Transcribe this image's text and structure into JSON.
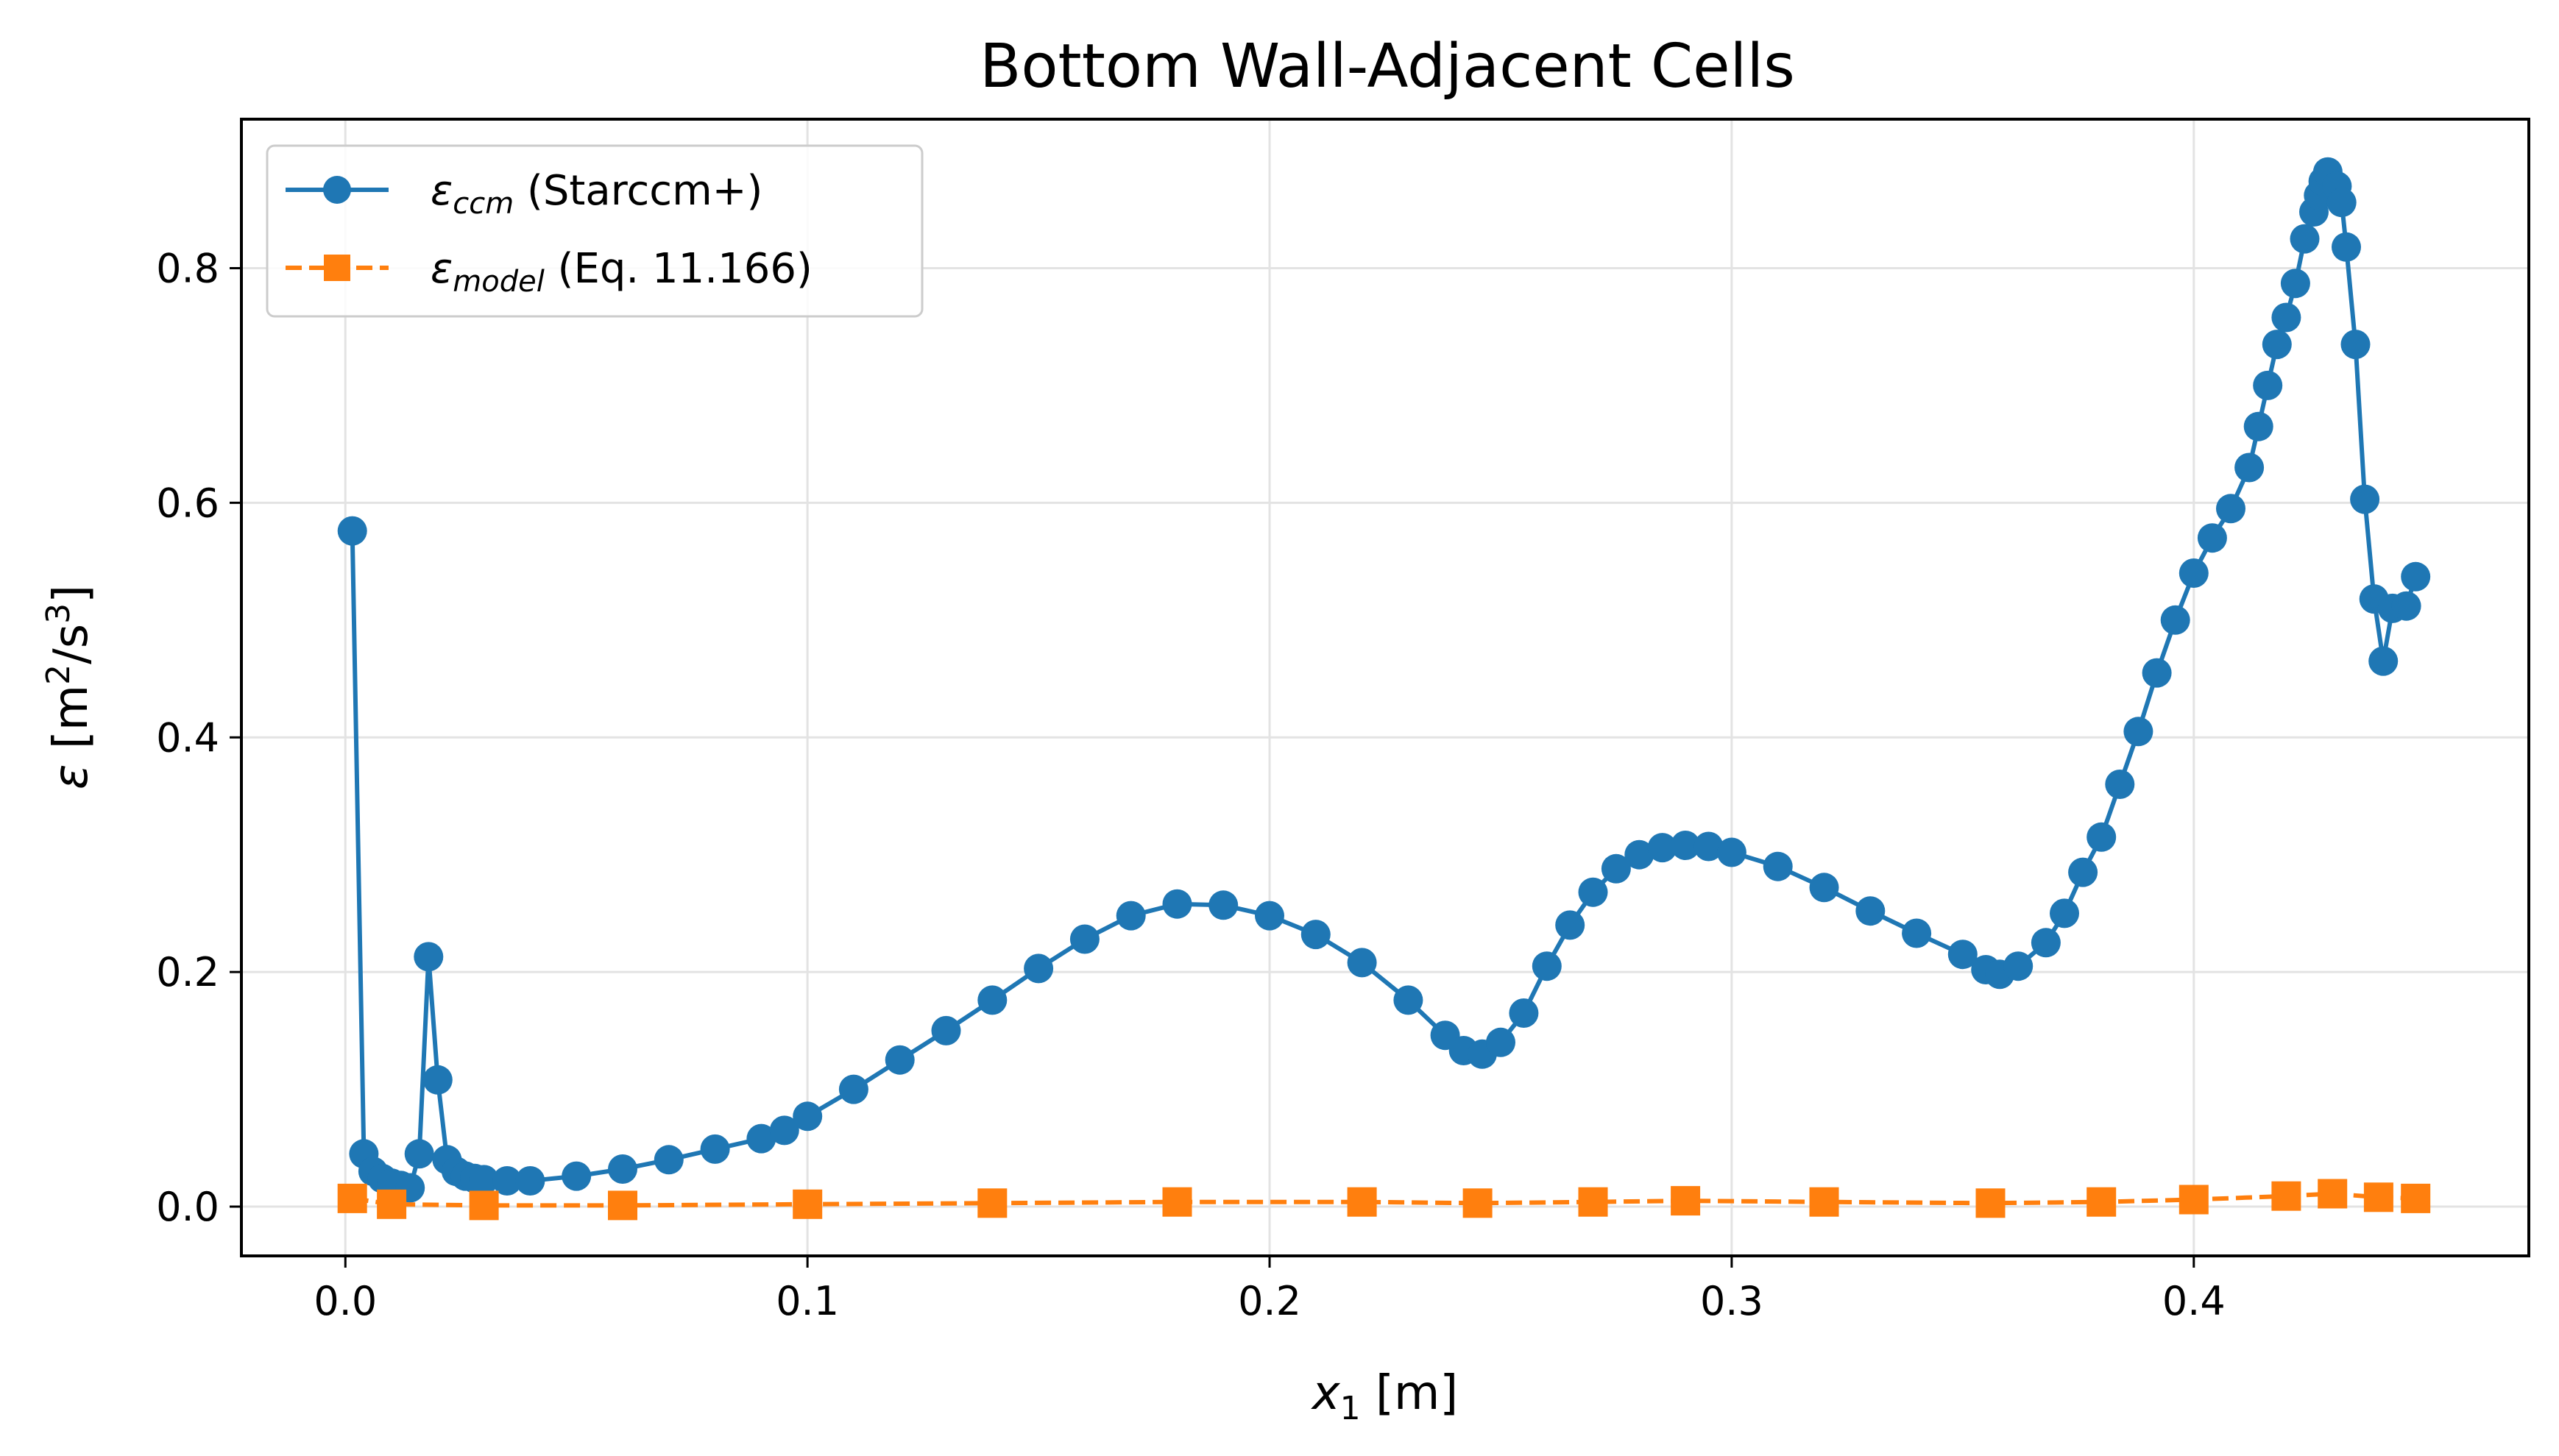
{
  "chart_data": {
    "type": "line",
    "title": "Bottom Wall-Adjacent Cells",
    "xlabel": {
      "var": "x",
      "sub": "1",
      "unit": " [m]"
    },
    "ylabel": {
      "var": "ε",
      "unit_a": " [m",
      "sup_a": "2",
      "unit_b": "/s",
      "sup_b": "3",
      "unit_c": "]"
    },
    "xlim": [
      -0.0225,
      0.4725
    ],
    "ylim": [
      -0.042,
      0.927
    ],
    "xticks": [
      0.0,
      0.1,
      0.2,
      0.3,
      0.4
    ],
    "xtick_labels": [
      "0.0",
      "0.1",
      "0.2",
      "0.3",
      "0.4"
    ],
    "yticks": [
      0.0,
      0.2,
      0.4,
      0.6,
      0.8
    ],
    "ytick_labels": [
      "0.0",
      "0.2",
      "0.4",
      "0.6",
      "0.8"
    ],
    "grid": true,
    "legend_position": "upper-left",
    "series": [
      {
        "name_var": "ε",
        "name_sub": "ccm",
        "name_rest": " (Starccm+)",
        "color": "#1f77b4",
        "linestyle": "solid",
        "marker": "circle",
        "points": [
          [
            0.0015,
            0.576
          ],
          [
            0.004,
            0.045
          ],
          [
            0.006,
            0.03
          ],
          [
            0.008,
            0.024
          ],
          [
            0.01,
            0.02
          ],
          [
            0.012,
            0.018
          ],
          [
            0.014,
            0.016
          ],
          [
            0.016,
            0.045
          ],
          [
            0.018,
            0.213
          ],
          [
            0.02,
            0.108
          ],
          [
            0.022,
            0.04
          ],
          [
            0.024,
            0.03
          ],
          [
            0.026,
            0.026
          ],
          [
            0.028,
            0.024
          ],
          [
            0.03,
            0.023
          ],
          [
            0.035,
            0.022
          ],
          [
            0.04,
            0.022
          ],
          [
            0.05,
            0.026
          ],
          [
            0.06,
            0.032
          ],
          [
            0.07,
            0.04
          ],
          [
            0.08,
            0.049
          ],
          [
            0.09,
            0.058
          ],
          [
            0.095,
            0.065
          ],
          [
            0.1,
            0.077
          ],
          [
            0.11,
            0.1
          ],
          [
            0.12,
            0.125
          ],
          [
            0.13,
            0.15
          ],
          [
            0.14,
            0.176
          ],
          [
            0.15,
            0.203
          ],
          [
            0.16,
            0.228
          ],
          [
            0.17,
            0.248
          ],
          [
            0.18,
            0.258
          ],
          [
            0.19,
            0.257
          ],
          [
            0.2,
            0.248
          ],
          [
            0.21,
            0.232
          ],
          [
            0.22,
            0.208
          ],
          [
            0.23,
            0.176
          ],
          [
            0.238,
            0.146
          ],
          [
            0.242,
            0.133
          ],
          [
            0.246,
            0.13
          ],
          [
            0.25,
            0.14
          ],
          [
            0.255,
            0.165
          ],
          [
            0.26,
            0.205
          ],
          [
            0.265,
            0.24
          ],
          [
            0.27,
            0.268
          ],
          [
            0.275,
            0.288
          ],
          [
            0.28,
            0.3
          ],
          [
            0.285,
            0.306
          ],
          [
            0.29,
            0.308
          ],
          [
            0.295,
            0.307
          ],
          [
            0.3,
            0.302
          ],
          [
            0.31,
            0.29
          ],
          [
            0.32,
            0.272
          ],
          [
            0.33,
            0.252
          ],
          [
            0.34,
            0.233
          ],
          [
            0.35,
            0.215
          ],
          [
            0.355,
            0.202
          ],
          [
            0.358,
            0.198
          ],
          [
            0.362,
            0.205
          ],
          [
            0.368,
            0.225
          ],
          [
            0.372,
            0.25
          ],
          [
            0.376,
            0.285
          ],
          [
            0.38,
            0.315
          ],
          [
            0.384,
            0.36
          ],
          [
            0.388,
            0.405
          ],
          [
            0.392,
            0.455
          ],
          [
            0.396,
            0.5
          ],
          [
            0.4,
            0.54
          ],
          [
            0.404,
            0.57
          ],
          [
            0.408,
            0.595
          ],
          [
            0.412,
            0.63
          ],
          [
            0.414,
            0.665
          ],
          [
            0.416,
            0.7
          ],
          [
            0.418,
            0.735
          ],
          [
            0.42,
            0.758
          ],
          [
            0.422,
            0.787
          ],
          [
            0.424,
            0.825
          ],
          [
            0.426,
            0.848
          ],
          [
            0.427,
            0.862
          ],
          [
            0.428,
            0.874
          ],
          [
            0.429,
            0.882
          ],
          [
            0.431,
            0.87
          ],
          [
            0.432,
            0.856
          ],
          [
            0.433,
            0.818
          ],
          [
            0.435,
            0.735
          ],
          [
            0.437,
            0.603
          ],
          [
            0.439,
            0.518
          ],
          [
            0.441,
            0.465
          ],
          [
            0.443,
            0.51
          ],
          [
            0.446,
            0.512
          ],
          [
            0.448,
            0.537
          ]
        ]
      },
      {
        "name_var": "ε",
        "name_sub": "model",
        "name_rest": " (Eq. 11.166)",
        "color": "#ff7f0e",
        "linestyle": "dashed",
        "marker": "square",
        "points": [
          [
            0.0015,
            0.007
          ],
          [
            0.01,
            0.002
          ],
          [
            0.03,
            0.001
          ],
          [
            0.06,
            0.001
          ],
          [
            0.1,
            0.002
          ],
          [
            0.14,
            0.003
          ],
          [
            0.18,
            0.004
          ],
          [
            0.22,
            0.004
          ],
          [
            0.245,
            0.003
          ],
          [
            0.27,
            0.004
          ],
          [
            0.29,
            0.005
          ],
          [
            0.32,
            0.004
          ],
          [
            0.356,
            0.003
          ],
          [
            0.38,
            0.004
          ],
          [
            0.4,
            0.006
          ],
          [
            0.42,
            0.009
          ],
          [
            0.43,
            0.011
          ],
          [
            0.44,
            0.008
          ],
          [
            0.448,
            0.007
          ]
        ]
      }
    ]
  }
}
